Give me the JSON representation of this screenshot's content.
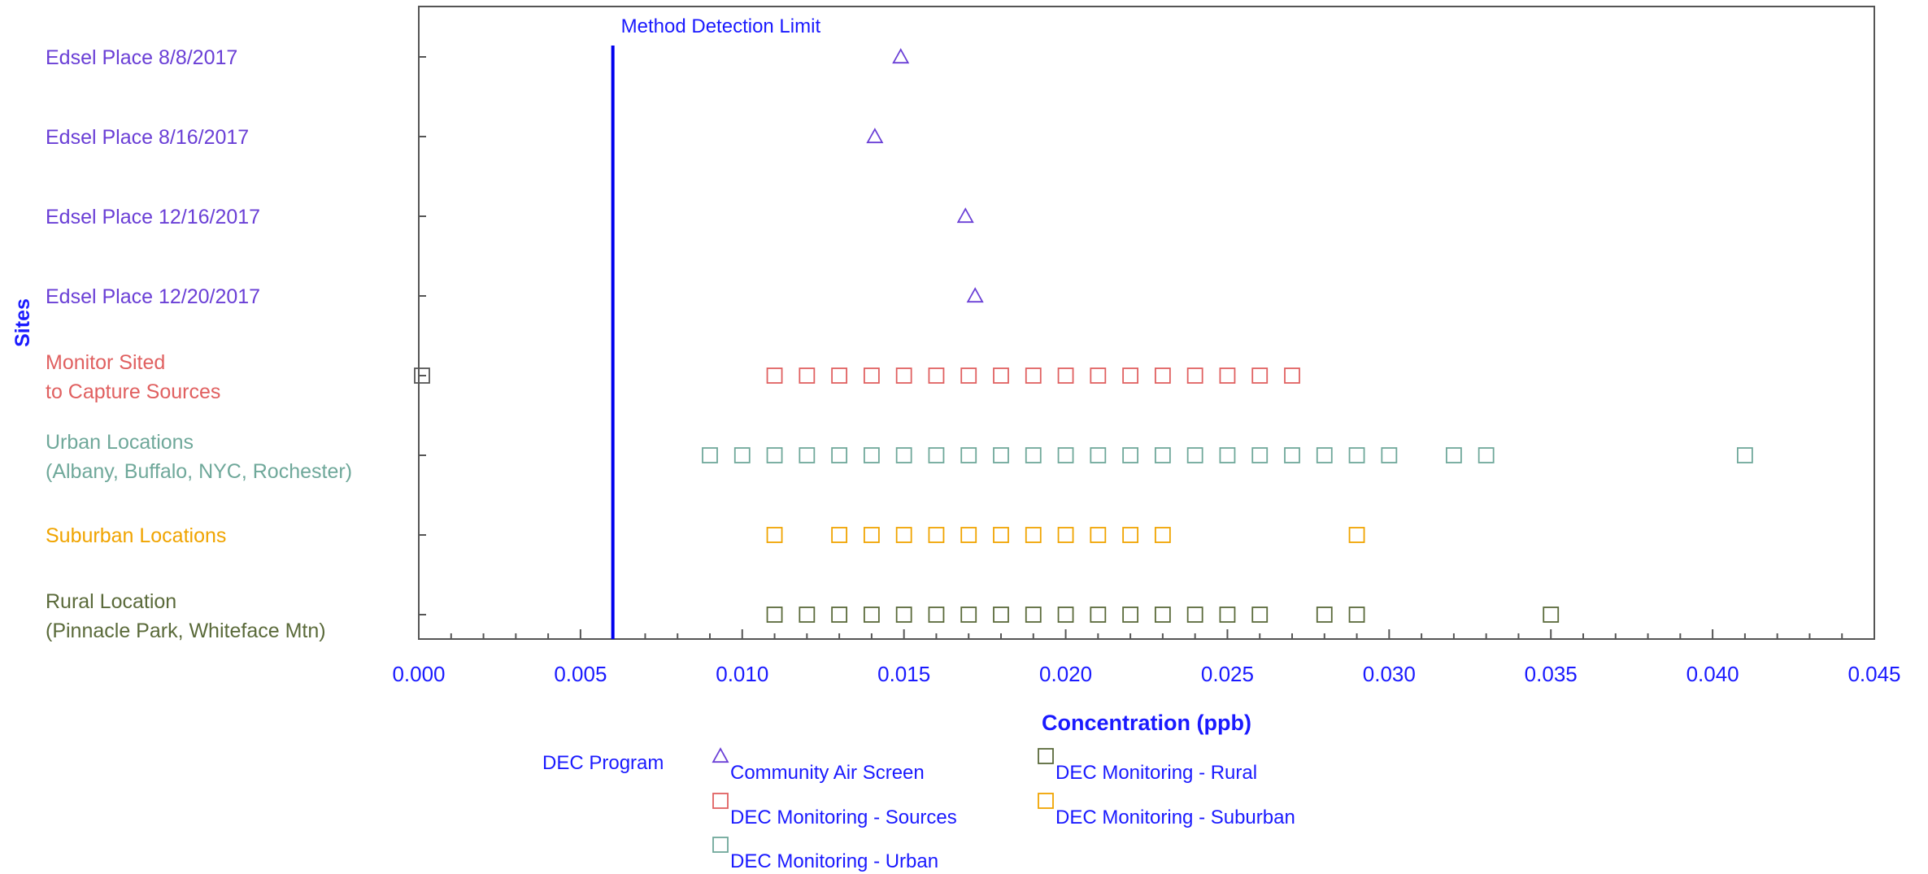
{
  "colors": {
    "axis": "#555555",
    "text_blue": "#1a1aff",
    "mdl_line": "#0000ee",
    "community": "#6a3fd6",
    "sources": "#e06060",
    "urban": "#6fa89a",
    "suburban": "#f0a400",
    "rural": "#5a6a3a"
  },
  "chart_data": {
    "type": "scatter",
    "xlabel": "Concentration (ppb)",
    "ylabel": "Sites",
    "xlim": [
      0.0,
      0.045
    ],
    "x_ticks": [
      "0.000",
      "0.005",
      "0.010",
      "0.015",
      "0.020",
      "0.025",
      "0.030",
      "0.035",
      "0.040",
      "0.045"
    ],
    "x_tick_values": [
      0.0,
      0.005,
      0.01,
      0.015,
      0.02,
      0.025,
      0.03,
      0.035,
      0.04,
      0.045
    ],
    "reference_line": {
      "label": "Method Detection Limit",
      "x": 0.006
    },
    "categories": [
      {
        "lines": [
          "Edsel Place 8/8/2017"
        ],
        "color_key": "community"
      },
      {
        "lines": [
          "Edsel Place 8/16/2017"
        ],
        "color_key": "community"
      },
      {
        "lines": [
          "Edsel Place 12/16/2017"
        ],
        "color_key": "community"
      },
      {
        "lines": [
          "Edsel Place 12/20/2017"
        ],
        "color_key": "community"
      },
      {
        "lines": [
          "Monitor Sited",
          "to Capture Sources"
        ],
        "color_key": "sources"
      },
      {
        "lines": [
          "Urban Locations",
          "(Albany, Buffalo, NYC, Rochester)"
        ],
        "color_key": "urban"
      },
      {
        "lines": [
          "Suburban Locations"
        ],
        "color_key": "suburban"
      },
      {
        "lines": [
          "Rural Location",
          "(Pinnacle Park, Whiteface Mtn)"
        ],
        "color_key": "rural"
      }
    ],
    "series": [
      {
        "name": "Community Air Screen",
        "marker": "triangle",
        "color_key": "community",
        "points": [
          [
            0.0149,
            0
          ],
          [
            0.0141,
            1
          ],
          [
            0.0169,
            2
          ],
          [
            0.0172,
            3
          ]
        ]
      },
      {
        "name": "DEC Monitoring - Sources",
        "marker": "square",
        "color_key": "sources",
        "points": [
          [
            0.011,
            4
          ],
          [
            0.012,
            4
          ],
          [
            0.013,
            4
          ],
          [
            0.014,
            4
          ],
          [
            0.015,
            4
          ],
          [
            0.016,
            4
          ],
          [
            0.017,
            4
          ],
          [
            0.018,
            4
          ],
          [
            0.019,
            4
          ],
          [
            0.02,
            4
          ],
          [
            0.021,
            4
          ],
          [
            0.022,
            4
          ],
          [
            0.023,
            4
          ],
          [
            0.024,
            4
          ],
          [
            0.025,
            4
          ],
          [
            0.026,
            4
          ],
          [
            0.027,
            4
          ]
        ]
      },
      {
        "name": "DEC Monitoring - Urban",
        "marker": "square",
        "color_key": "urban",
        "points": [
          [
            0.009,
            5
          ],
          [
            0.01,
            5
          ],
          [
            0.011,
            5
          ],
          [
            0.012,
            5
          ],
          [
            0.013,
            5
          ],
          [
            0.014,
            5
          ],
          [
            0.015,
            5
          ],
          [
            0.016,
            5
          ],
          [
            0.017,
            5
          ],
          [
            0.018,
            5
          ],
          [
            0.019,
            5
          ],
          [
            0.02,
            5
          ],
          [
            0.021,
            5
          ],
          [
            0.022,
            5
          ],
          [
            0.023,
            5
          ],
          [
            0.024,
            5
          ],
          [
            0.025,
            5
          ],
          [
            0.026,
            5
          ],
          [
            0.027,
            5
          ],
          [
            0.028,
            5
          ],
          [
            0.029,
            5
          ],
          [
            0.03,
            5
          ],
          [
            0.032,
            5
          ],
          [
            0.033,
            5
          ],
          [
            0.041,
            5
          ]
        ]
      },
      {
        "name": "DEC Monitoring - Suburban",
        "marker": "square",
        "color_key": "suburban",
        "points": [
          [
            0.011,
            6
          ],
          [
            0.013,
            6
          ],
          [
            0.014,
            6
          ],
          [
            0.015,
            6
          ],
          [
            0.016,
            6
          ],
          [
            0.017,
            6
          ],
          [
            0.018,
            6
          ],
          [
            0.019,
            6
          ],
          [
            0.02,
            6
          ],
          [
            0.021,
            6
          ],
          [
            0.022,
            6
          ],
          [
            0.023,
            6
          ],
          [
            0.029,
            6
          ]
        ]
      },
      {
        "name": "DEC Monitoring - Rural",
        "marker": "square",
        "color_key": "rural",
        "points": [
          [
            0.011,
            7
          ],
          [
            0.012,
            7
          ],
          [
            0.013,
            7
          ],
          [
            0.014,
            7
          ],
          [
            0.015,
            7
          ],
          [
            0.016,
            7
          ],
          [
            0.017,
            7
          ],
          [
            0.018,
            7
          ],
          [
            0.019,
            7
          ],
          [
            0.02,
            7
          ],
          [
            0.021,
            7
          ],
          [
            0.022,
            7
          ],
          [
            0.023,
            7
          ],
          [
            0.024,
            7
          ],
          [
            0.025,
            7
          ],
          [
            0.026,
            7
          ],
          [
            0.028,
            7
          ],
          [
            0.029,
            7
          ],
          [
            0.035,
            7
          ]
        ]
      },
      {
        "name": "",
        "marker": "square",
        "color_key": "axis",
        "points": [
          [
            0.0,
            4
          ]
        ]
      }
    ],
    "legend": {
      "title": "DEC Program",
      "entries": [
        {
          "label": "Community Air Screen",
          "marker": "triangle",
          "color_key": "community"
        },
        {
          "label": "DEC Monitoring - Rural",
          "marker": "square",
          "color_key": "rural"
        },
        {
          "label": "DEC Monitoring - Sources",
          "marker": "square",
          "color_key": "sources"
        },
        {
          "label": "DEC Monitoring - Suburban",
          "marker": "square",
          "color_key": "suburban"
        },
        {
          "label": "DEC Monitoring - Urban",
          "marker": "square",
          "color_key": "urban"
        }
      ]
    },
    "grid": false
  }
}
